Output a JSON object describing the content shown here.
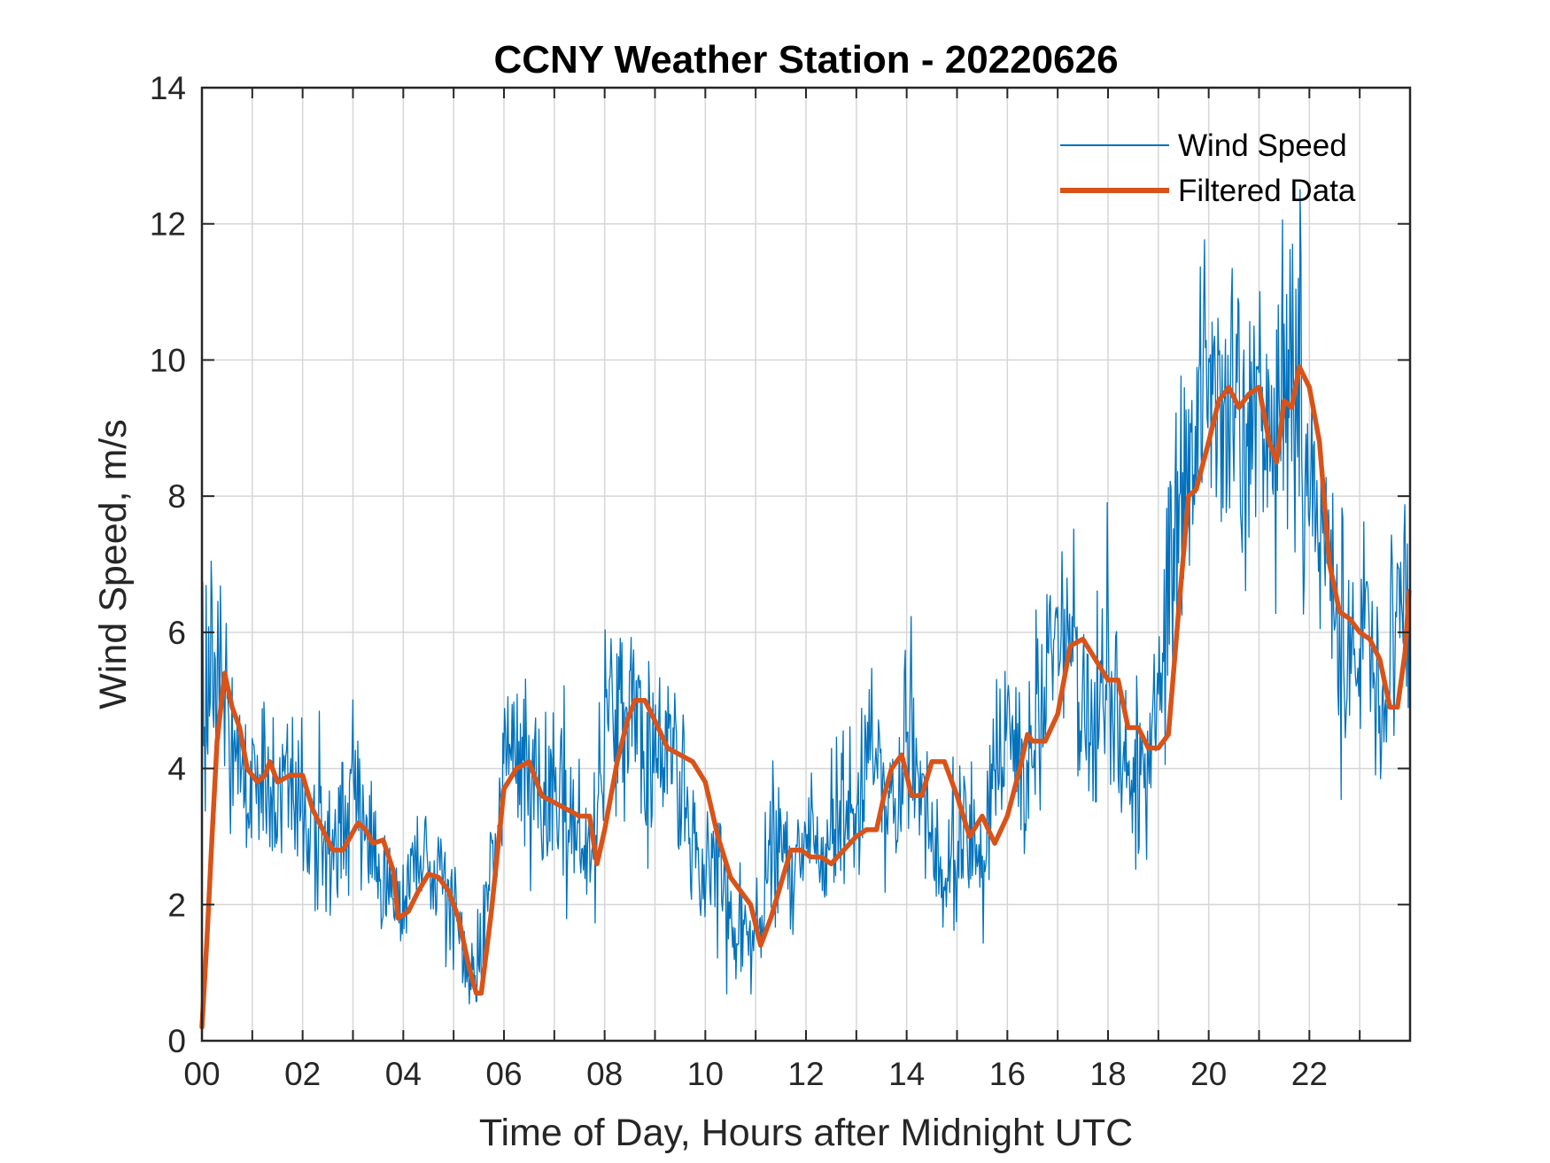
{
  "chart_data": {
    "type": "line",
    "title": "CCNY Weather Station - 20220626",
    "xlabel": "Time of Day, Hours after Midnight UTC",
    "ylabel": "Wind Speed, m/s",
    "xlim": [
      0,
      24
    ],
    "ylim": [
      0,
      14
    ],
    "grid": true,
    "legend_position": "top-right",
    "x_minor_ticks_every": 1,
    "x_tick_values": [
      0,
      2,
      4,
      6,
      8,
      10,
      12,
      14,
      16,
      18,
      20,
      22
    ],
    "x_tick_labels": [
      "00",
      "02",
      "04",
      "06",
      "08",
      "10",
      "12",
      "14",
      "16",
      "18",
      "20",
      "22"
    ],
    "y_tick_values": [
      0,
      2,
      4,
      6,
      8,
      10,
      12,
      14
    ],
    "y_tick_labels": [
      "0",
      "2",
      "4",
      "6",
      "8",
      "10",
      "12",
      "14"
    ],
    "series": [
      {
        "name": "Wind Speed",
        "color": "#0072BD",
        "style": "thin noisy line",
        "x": [
          0.0,
          0.25,
          0.5,
          0.75,
          1.0,
          1.25,
          1.5,
          1.75,
          2.0,
          2.25,
          2.5,
          2.75,
          3.0,
          3.25,
          3.5,
          3.75,
          4.0,
          4.25,
          4.5,
          4.75,
          5.0,
          5.25,
          5.5,
          5.75,
          6.0,
          6.25,
          6.5,
          6.75,
          7.0,
          7.25,
          7.5,
          7.75,
          8.0,
          8.25,
          8.5,
          8.75,
          9.0,
          9.25,
          9.5,
          9.75,
          10.0,
          10.25,
          10.5,
          10.75,
          11.0,
          11.25,
          11.5,
          11.75,
          12.0,
          12.25,
          12.5,
          12.75,
          13.0,
          13.25,
          13.5,
          13.75,
          14.0,
          14.25,
          14.5,
          14.75,
          15.0,
          15.25,
          15.5,
          15.75,
          16.0,
          16.25,
          16.5,
          16.75,
          17.0,
          17.25,
          17.5,
          17.75,
          18.0,
          18.25,
          18.5,
          18.75,
          19.0,
          19.25,
          19.5,
          19.75,
          20.0,
          20.25,
          20.5,
          20.75,
          21.0,
          21.25,
          21.5,
          21.75,
          22.0,
          22.25,
          22.5,
          22.75,
          23.0,
          23.25,
          23.5,
          23.75,
          23.98
        ],
        "y": [
          4.9,
          5.8,
          4.9,
          4.1,
          3.4,
          4.3,
          3.6,
          4.2,
          3.5,
          3.3,
          2.6,
          2.8,
          3.5,
          3.0,
          2.6,
          2.0,
          1.9,
          2.9,
          2.3,
          2.5,
          1.8,
          0.9,
          1.3,
          2.4,
          4.2,
          4.5,
          3.7,
          3.3,
          3.8,
          3.0,
          3.4,
          2.2,
          4.4,
          5.4,
          5.0,
          4.4,
          4.1,
          4.3,
          4.0,
          3.0,
          2.2,
          2.6,
          1.6,
          1.7,
          1.2,
          2.8,
          2.9,
          2.4,
          2.8,
          2.5,
          3.2,
          3.5,
          3.0,
          4.7,
          4.0,
          3.4,
          4.5,
          3.8,
          2.8,
          2.5,
          3.1,
          2.9,
          2.4,
          3.8,
          4.8,
          4.0,
          4.3,
          5.4,
          6.2,
          5.8,
          5.0,
          4.7,
          5.7,
          4.3,
          3.8,
          3.8,
          4.8,
          7.0,
          8.3,
          8.6,
          10.2,
          9.0,
          9.7,
          8.8,
          9.8,
          8.0,
          10.3,
          9.6,
          8.5,
          7.5,
          6.3,
          5.6,
          6.0,
          5.8,
          4.3,
          6.8,
          5.7
        ]
      },
      {
        "name": "Filtered Data",
        "color": "#D95319",
        "style": "thick smooth line",
        "x": [
          0.0,
          0.1,
          0.2,
          0.3,
          0.45,
          0.6,
          0.75,
          0.9,
          1.1,
          1.25,
          1.35,
          1.5,
          1.75,
          2.0,
          2.2,
          2.4,
          2.6,
          2.8,
          2.95,
          3.1,
          3.25,
          3.4,
          3.6,
          3.8,
          3.9,
          4.1,
          4.3,
          4.5,
          4.7,
          4.9,
          5.1,
          5.3,
          5.45,
          5.55,
          5.75,
          6.0,
          6.25,
          6.5,
          6.75,
          7.0,
          7.25,
          7.5,
          7.7,
          7.85,
          8.0,
          8.25,
          8.45,
          8.6,
          8.8,
          9.0,
          9.25,
          9.5,
          9.75,
          10.0,
          10.25,
          10.5,
          10.7,
          10.9,
          11.1,
          11.3,
          11.5,
          11.7,
          11.9,
          12.1,
          12.3,
          12.5,
          12.75,
          13.0,
          13.2,
          13.4,
          13.55,
          13.7,
          13.9,
          14.1,
          14.3,
          14.5,
          14.75,
          15.0,
          15.25,
          15.5,
          15.75,
          16.0,
          16.25,
          16.4,
          16.5,
          16.75,
          17.0,
          17.25,
          17.5,
          17.75,
          18.0,
          18.2,
          18.4,
          18.6,
          18.8,
          19.0,
          19.2,
          19.4,
          19.6,
          19.75,
          20.0,
          20.2,
          20.4,
          20.6,
          20.8,
          21.0,
          21.2,
          21.35,
          21.5,
          21.65,
          21.8,
          22.0,
          22.2,
          22.4,
          22.6,
          22.8,
          23.0,
          23.2,
          23.4,
          23.6,
          23.75,
          23.9,
          23.98
        ],
        "y": [
          0.2,
          1.5,
          3.0,
          4.4,
          5.4,
          4.9,
          4.6,
          4.0,
          3.8,
          3.9,
          4.1,
          3.8,
          3.9,
          3.9,
          3.4,
          3.1,
          2.8,
          2.8,
          3.0,
          3.2,
          3.1,
          2.9,
          2.95,
          2.5,
          1.8,
          1.9,
          2.2,
          2.45,
          2.4,
          2.2,
          1.8,
          1.1,
          0.7,
          0.7,
          1.9,
          3.7,
          4.0,
          4.1,
          3.6,
          3.5,
          3.4,
          3.3,
          3.3,
          2.6,
          3.1,
          4.1,
          4.7,
          5.0,
          5.0,
          4.7,
          4.3,
          4.2,
          4.1,
          3.8,
          3.0,
          2.4,
          2.2,
          2.0,
          1.4,
          1.8,
          2.3,
          2.8,
          2.8,
          2.7,
          2.7,
          2.6,
          2.8,
          3.0,
          3.1,
          3.1,
          3.6,
          4.0,
          4.2,
          3.6,
          3.6,
          4.1,
          4.1,
          3.6,
          3.0,
          3.3,
          2.9,
          3.3,
          4.0,
          4.5,
          4.4,
          4.4,
          4.8,
          5.8,
          5.9,
          5.6,
          5.3,
          5.3,
          4.6,
          4.6,
          4.3,
          4.3,
          4.5,
          6.3,
          8.0,
          8.1,
          8.8,
          9.4,
          9.6,
          9.3,
          9.5,
          9.6,
          8.8,
          8.5,
          9.4,
          9.3,
          9.9,
          9.6,
          8.8,
          7.0,
          6.3,
          6.2,
          6.0,
          5.9,
          5.6,
          4.9,
          4.9,
          5.7,
          6.6
        ]
      }
    ]
  }
}
